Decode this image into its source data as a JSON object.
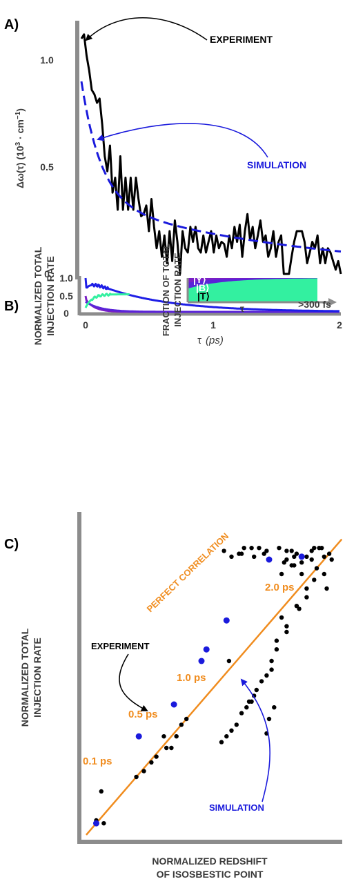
{
  "colors": {
    "experiment": "#000000",
    "simulation": "#1a1adc",
    "blue_curve": "#1e1ee6",
    "purple": "#7a1fc6",
    "violet": "#5a23d8",
    "green": "#33f0a0",
    "orange": "#f08c1e",
    "axis": "#8c8c8c",
    "text_dark": "#3a3a3a",
    "white": "#ffffff"
  },
  "chart_data": [
    {
      "panel_label": "A)",
      "type": "line",
      "ylabel": "Δω(τ) (10^3 · cm^-1)",
      "ylabel_main": "Δω(τ) (10",
      "ylabel_exp1": "3",
      "ylabel_mid": " · cm",
      "ylabel_exp2": "−1",
      "ylabel_end": ")",
      "yticks": [
        "0",
        "0.5",
        "1.0"
      ],
      "ytick_values": [
        0,
        0.5,
        1.0
      ],
      "xlim": [
        0,
        2
      ],
      "ylim": [
        -0.02,
        1.22
      ],
      "annotations": {
        "experiment": "EXPERIMENT",
        "simulation": "SIMULATION"
      },
      "series": [
        {
          "name": "EXPERIMENT",
          "style": "solid",
          "x": [
            0,
            0.02,
            0.04,
            0.06,
            0.08,
            0.1,
            0.12,
            0.14,
            0.16,
            0.18,
            0.2,
            0.22,
            0.24,
            0.26,
            0.28,
            0.3,
            0.32,
            0.34,
            0.36,
            0.38,
            0.4,
            0.42,
            0.44,
            0.46,
            0.48,
            0.5,
            0.52,
            0.54,
            0.56,
            0.58,
            0.6,
            0.62,
            0.64,
            0.66,
            0.68,
            0.7,
            0.72,
            0.74,
            0.76,
            0.78,
            0.8,
            0.82,
            0.84,
            0.86,
            0.88,
            0.9,
            0.92,
            0.94,
            0.96,
            0.98,
            1.0,
            1.02,
            1.04,
            1.06,
            1.08,
            1.1,
            1.12,
            1.14,
            1.16,
            1.18,
            1.2,
            1.22,
            1.24,
            1.26,
            1.28,
            1.3,
            1.32,
            1.34,
            1.36,
            1.38,
            1.4,
            1.42,
            1.44,
            1.46,
            1.48,
            1.5,
            1.52,
            1.54,
            1.56,
            1.58,
            1.6,
            1.62,
            1.64,
            1.66,
            1.68,
            1.7,
            1.72,
            1.74,
            1.76,
            1.78,
            1.8,
            1.82,
            1.84,
            1.86,
            1.88,
            1.9,
            1.92,
            1.94,
            1.96,
            1.98,
            2.0
          ],
          "y": [
            1.1,
            1.12,
            1.02,
            0.95,
            0.86,
            0.84,
            0.8,
            0.82,
            0.7,
            0.55,
            0.48,
            0.6,
            0.38,
            0.45,
            0.3,
            0.55,
            0.3,
            0.45,
            0.3,
            0.45,
            0.3,
            0.45,
            0.35,
            0.27,
            0.28,
            0.32,
            0.2,
            0.35,
            0.22,
            0.12,
            0.2,
            0.08,
            0.18,
            0.05,
            0.2,
            0.06,
            0.25,
            0.15,
            0.0,
            0.2,
            0.12,
            0.1,
            0.22,
            0.15,
            0.22,
            0.12,
            0.1,
            0.18,
            0.1,
            0.15,
            0.2,
            0.1,
            0.18,
            0.12,
            0.15,
            0.14,
            0.08,
            0.18,
            0.12,
            0.22,
            0.15,
            0.23,
            0.08,
            0.2,
            0.28,
            0.16,
            0.22,
            0.12,
            0.18,
            0.25,
            0.15,
            0.18,
            0.08,
            0.12,
            0.2,
            0.08,
            0.15,
            0.18,
            0.0,
            0.0,
            0.0,
            0.08,
            0.15,
            0.2,
            0.2,
            0.2,
            0.15,
            0.05,
            0.1,
            0.15,
            0.12,
            0.18,
            0.05,
            0.12,
            0.05,
            0.12,
            0.1,
            0.06,
            0.02,
            0.06,
            0.0
          ]
        },
        {
          "name": "SIMULATION",
          "style": "dashed",
          "function": "exp",
          "params": {
            "A1": 0.56,
            "tau1": 0.15,
            "A2": 0.34,
            "tau2": 1.7
          }
        }
      ]
    },
    {
      "panel_label": "B)",
      "type": "line",
      "ylabel": "NORMALIZED TOTAL INJECTION RATE",
      "ylabel_line1": "NORMALIZED TOTAL",
      "ylabel_line2": "INJECTION RATE",
      "xlabel_tau": "τ",
      "xlabel_unit": "(ps)",
      "xticks": [
        "0",
        "1",
        "2"
      ],
      "xtick_values": [
        0,
        1,
        2
      ],
      "yticks": [
        "0",
        "0.5",
        "1.0"
      ],
      "ytick_values": [
        0,
        0.5,
        1.0
      ],
      "xlim": [
        0,
        2
      ],
      "ylim": [
        0,
        1.0
      ],
      "inset": {
        "type": "area",
        "ylabel_line1": "FRACTION OF TOTAL",
        "ylabel_line2": "INJECTION RATE",
        "xlabel": "τ",
        "x_end_label": ">300 fs",
        "regions": [
          {
            "name": "|Y⟩",
            "fraction_at_start": 0.2
          },
          {
            "name": "|B⟩",
            "fraction_at_start": 0.25
          },
          {
            "name": "|T⟩",
            "fraction_at_start": 0.55
          }
        ]
      },
      "series": [
        {
          "name": "",
          "color": "blue_curve",
          "function": "total"
        },
        {
          "name": "",
          "color": "green",
          "function": "green"
        },
        {
          "name": "",
          "color": "purple",
          "function": "purple"
        },
        {
          "name": "",
          "color": "violet",
          "function": "violet"
        }
      ]
    },
    {
      "panel_label": "C)",
      "type": "scatter",
      "xlabel_line1": "NORMALIZED REDSHIFT",
      "xlabel_line2": "OF ISOSBESTIC POINT",
      "ylabel_line1": "NORMALIZED TOTAL",
      "ylabel_line2": "INJECTION RATE",
      "xlim": [
        0,
        1
      ],
      "ylim": [
        0,
        1
      ],
      "annotations": {
        "experiment": "EXPERIMENT",
        "simulation": "SIMULATION",
        "perfect": "PERFECT CORRELATION",
        "t01": "0.1 ps",
        "t05": "0.5 ps",
        "t10": "1.0 ps",
        "t20": "2.0 ps"
      },
      "experiment_points": {
        "x": [
          0.04,
          0.07,
          0.06,
          0.2,
          0.23,
          0.26,
          0.28,
          0.32,
          0.34,
          0.31,
          0.36,
          0.38,
          0.4,
          0.57,
          0.65,
          0.67,
          0.72,
          0.73,
          0.75,
          0.78,
          0.8,
          0.82,
          0.83,
          0.86,
          0.88,
          0.84,
          0.9,
          0.92,
          0.95,
          0.98,
          0.96,
          0.88,
          0.85,
          0.8,
          0.78,
          0.76,
          0.74,
          0.7,
          0.68,
          0.66,
          0.64,
          0.62,
          0.6,
          0.58,
          0.56,
          0.54,
          0.72,
          0.74,
          0.76,
          0.8,
          0.84,
          0.88,
          0.91,
          0.93,
          0.86,
          0.9,
          0.94,
          0.97,
          0.83,
          0.8,
          0.77,
          0.71,
          0.69,
          0.67,
          0.63,
          0.61,
          0.55,
          0.58,
          0.62,
          0.66,
          0.72,
          0.79,
          0.82,
          0.91,
          0.95
        ],
        "y": [
          0.05,
          0.04,
          0.15,
          0.2,
          0.22,
          0.25,
          0.27,
          0.3,
          0.3,
          0.34,
          0.34,
          0.38,
          0.4,
          0.6,
          0.46,
          0.48,
          0.35,
          0.4,
          0.44,
          0.9,
          0.95,
          0.98,
          0.93,
          0.9,
          0.96,
          0.97,
          0.95,
          0.92,
          0.9,
          0.95,
          0.85,
          0.82,
          0.78,
          0.72,
          0.75,
          0.67,
          0.57,
          0.53,
          0.5,
          0.46,
          0.44,
          0.42,
          0.38,
          0.36,
          0.34,
          0.32,
          0.55,
          0.6,
          0.64,
          0.7,
          0.79,
          0.85,
          0.88,
          0.99,
          0.94,
          0.98,
          0.99,
          0.97,
          0.96,
          0.98,
          0.99,
          0.97,
          0.99,
          0.96,
          0.99,
          0.97,
          0.98,
          0.96,
          0.97,
          0.99,
          0.98,
          0.94,
          0.93,
          0.99,
          0.96
        ]
      },
      "simulation_points": {
        "x": [
          0.04,
          0.21,
          0.35,
          0.48,
          0.46,
          0.56,
          0.73,
          0.86
        ],
        "y": [
          0.04,
          0.34,
          0.45,
          0.64,
          0.6,
          0.74,
          0.95,
          0.96
        ]
      }
    }
  ]
}
